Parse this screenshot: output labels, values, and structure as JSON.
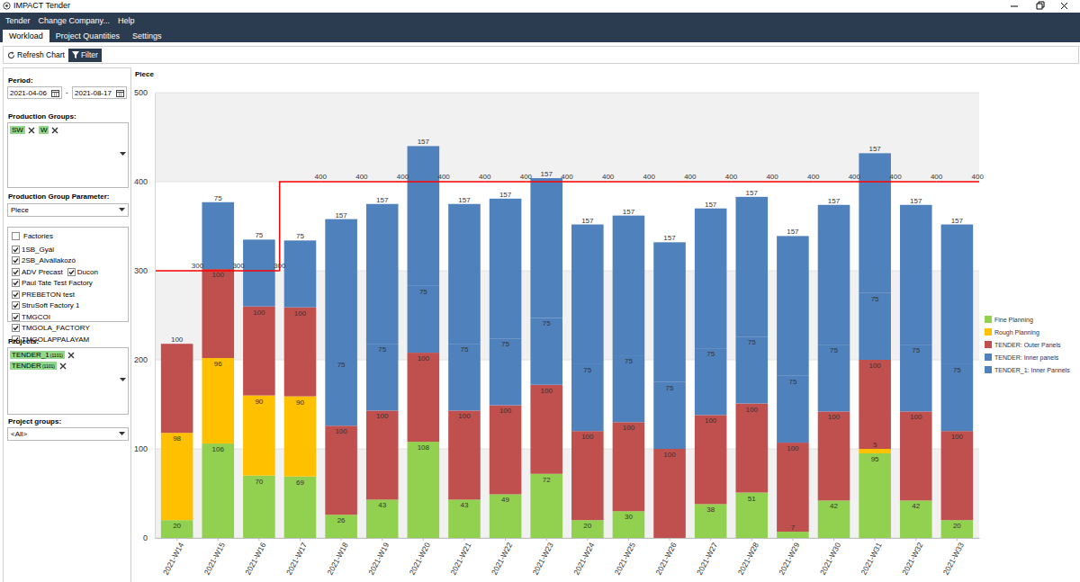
{
  "window": {
    "title": "IMPACT Tender"
  },
  "menu": [
    "Tender",
    "Change Company...",
    "Help"
  ],
  "tabs": [
    "Workload",
    "Project Quantities",
    "Settings"
  ],
  "toolbar": [
    "Refresh Chart",
    "Filter"
  ],
  "filters": {
    "period_label": "Period:",
    "period_from": "2021-04-06",
    "period_separator": "-",
    "period_to": "2021-08-17",
    "production_groups_label": "Production Groups:",
    "production_groups": [
      "SW",
      "W"
    ],
    "parameter_label": "Production Group Parameter:",
    "parameter": "Piece",
    "factories_label": "Factories",
    "factories": [
      "1SB_Gyál",
      "2SB_Alvállakozó",
      "ADV Precast",
      "Ducon",
      "Paul Tate Test Factory",
      "PREBETON test",
      "StruSoft Factory 1",
      "TMGCOI",
      "TMGOLA_FACTORY",
      "TMGOLAPPALAYAM"
    ],
    "projects_label": "Projects:",
    "projects": [
      {
        "name": "TENDER_1",
        "code": "(1101)"
      },
      {
        "name": "TENDER",
        "code": "(1101)"
      }
    ],
    "project_groups_label": "Project groups:",
    "project_groups": "<All>"
  },
  "chart_data": {
    "type": "bar",
    "stacked": true,
    "data_labels": true,
    "grid": true,
    "legend": "right",
    "ylabel": "Piece",
    "categories": [
      "2021-W14",
      "2021-W15",
      "2021-W16",
      "2021-W17",
      "2021-W18",
      "2021-W19",
      "2021-W20",
      "2021-W21",
      "2021-W22",
      "2021-W23",
      "2021-W24",
      "2021-W25",
      "2021-W26",
      "2021-W27",
      "2021-W28",
      "2021-W29",
      "2021-W30",
      "2021-W31",
      "2021-W32",
      "2021-W33"
    ],
    "ylim": [
      0,
      500
    ],
    "yticks": [
      0,
      100,
      200,
      300,
      400,
      500
    ],
    "series": [
      {
        "name": "Fine Planning",
        "color": "#92d050",
        "values": [
          20,
          106,
          70,
          69,
          26,
          43,
          108,
          43,
          49,
          72,
          20,
          30,
          0,
          38,
          51,
          7,
          42,
          95,
          42,
          20
        ]
      },
      {
        "name": "Rough Planning",
        "color": "#ffc000",
        "values": [
          98,
          96,
          90,
          90,
          0,
          0,
          0,
          0,
          0,
          0,
          0,
          0,
          0,
          0,
          0,
          0,
          0,
          5,
          0,
          0
        ]
      },
      {
        "name": "TENDER: Outer Panels",
        "color": "#c0504d",
        "values": [
          100,
          100,
          100,
          100,
          100,
          100,
          100,
          100,
          100,
          100,
          100,
          100,
          100,
          100,
          100,
          100,
          100,
          100,
          100,
          100
        ]
      },
      {
        "name": "TENDER: Inner panels",
        "color": "#4f81bd",
        "values": [
          0,
          75,
          75,
          75,
          75,
          75,
          75,
          75,
          75,
          75,
          75,
          75,
          75,
          75,
          75,
          75,
          75,
          75,
          75,
          75
        ]
      },
      {
        "name": "TENDER_1: Inner Pannels",
        "color": "#4f81bd",
        "values": [
          0,
          0,
          0,
          0,
          157,
          157,
          157,
          157,
          157,
          157,
          157,
          157,
          157,
          157,
          157,
          157,
          157,
          157,
          157,
          157
        ]
      },
      {
        "type": "line",
        "color": "#ff0000",
        "values": [
          300,
          300,
          300,
          400,
          400,
          400,
          400,
          400,
          400,
          400,
          400,
          400,
          400,
          400,
          400,
          400,
          400,
          400,
          400,
          400
        ]
      }
    ]
  }
}
